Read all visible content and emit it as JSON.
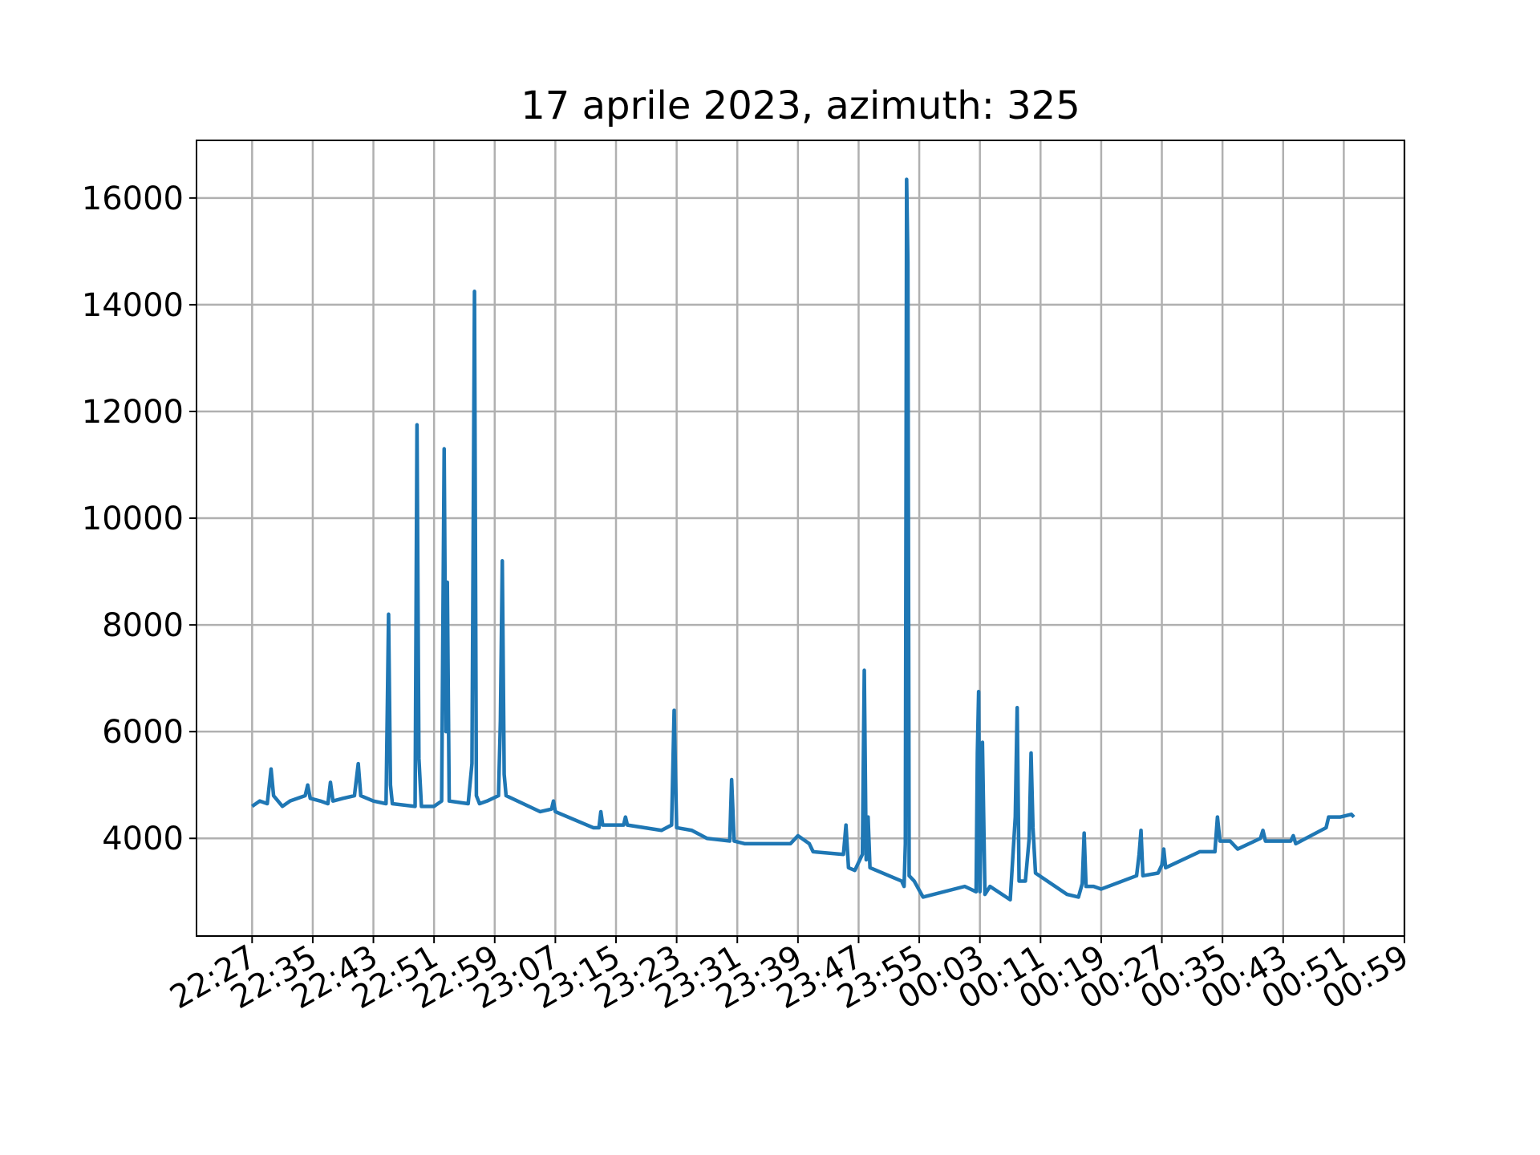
{
  "chart_data": {
    "type": "line",
    "title": "17 aprile 2023, azimuth: 325",
    "x": [
      "22:27:00",
      "22:28:00",
      "22:29:00",
      "22:29:30",
      "22:29:50",
      "22:31:00",
      "22:32:00",
      "22:34:00",
      "22:34:20",
      "22:34:40",
      "22:36:00",
      "22:37:00",
      "22:37:20",
      "22:37:40",
      "22:39:00",
      "22:40:30",
      "22:41:00",
      "22:41:20",
      "22:43:00",
      "22:44:40",
      "22:45:00",
      "22:45:15",
      "22:45:30",
      "22:48:30",
      "22:48:45",
      "22:49:00",
      "22:49:20",
      "22:51:00",
      "22:52:00",
      "22:52:20",
      "22:52:35",
      "22:52:45",
      "22:53:00",
      "22:55:30",
      "22:56:00",
      "22:56:20",
      "22:56:35",
      "22:57:00",
      "22:58:00",
      "22:59:30",
      "22:59:45",
      "23:00:00",
      "23:00:15",
      "23:00:30",
      "23:05:00",
      "23:06:30",
      "23:06:45",
      "23:07:00",
      "23:12:00",
      "23:12:45",
      "23:13:00",
      "23:13:15",
      "23:16:00",
      "23:16:15",
      "23:16:30",
      "23:21:00",
      "23:22:20",
      "23:22:40",
      "23:23:00",
      "23:25:00",
      "23:27:00",
      "23:30:00",
      "23:30:15",
      "23:30:35",
      "23:32:00",
      "23:38:00",
      "23:39:00",
      "23:40:30",
      "23:41:00",
      "23:45:00",
      "23:45:20",
      "23:45:40",
      "23:46:30",
      "23:47:30",
      "23:47:45",
      "23:48:00",
      "23:48:15",
      "23:48:30",
      "23:52:40",
      "23:53:00",
      "23:53:10",
      "23:53:20",
      "23:53:30",
      "23:53:40",
      "23:54:20",
      "23:55:30",
      "00:01:00",
      "00:02:30",
      "00:02:40",
      "00:02:50",
      "00:03:00",
      "00:03:20",
      "00:03:40",
      "00:04:20",
      "00:07:00",
      "00:07:40",
      "00:07:55",
      "00:08:10",
      "00:09:00",
      "00:09:30",
      "00:09:45",
      "00:10:00",
      "00:10:20",
      "00:14:30",
      "00:16:00",
      "00:16:30",
      "00:16:45",
      "00:17:00",
      "00:18:00",
      "00:19:00",
      "00:23:40",
      "00:24:00",
      "00:24:15",
      "00:24:30",
      "00:26:30",
      "00:27:00",
      "00:27:15",
      "00:27:30",
      "00:32:00",
      "00:34:00",
      "00:34:20",
      "00:34:40",
      "00:36:00",
      "00:37:00",
      "00:40:00",
      "00:40:20",
      "00:40:40",
      "00:44:00",
      "00:44:20",
      "00:44:40",
      "00:48:40",
      "00:49:00",
      "00:50:30",
      "00:52:00",
      "00:52:20"
    ],
    "series": [
      {
        "color": "#1f77b4",
        "values": [
          4600,
          4700,
          4650,
          5300,
          4800,
          4600,
          4700,
          4800,
          5000,
          4750,
          4700,
          4650,
          5050,
          4700,
          4750,
          4800,
          5400,
          4800,
          4700,
          4650,
          8200,
          5000,
          4650,
          4600,
          11750,
          5500,
          4600,
          4600,
          4700,
          11300,
          6000,
          8800,
          4700,
          4650,
          5400,
          14250,
          4800,
          4650,
          4700,
          4800,
          6200,
          9200,
          5200,
          4800,
          4500,
          4550,
          4700,
          4500,
          4200,
          4200,
          4500,
          4250,
          4250,
          4400,
          4250,
          4150,
          4250,
          6400,
          4200,
          4150,
          4000,
          3950,
          5100,
          3950,
          3900,
          3900,
          4050,
          3900,
          3750,
          3700,
          4250,
          3450,
          3400,
          3700,
          7150,
          3600,
          4400,
          3450,
          3200,
          3100,
          3900,
          16350,
          14800,
          3300,
          3200,
          2900,
          3100,
          3000,
          5600,
          6750,
          3000,
          5800,
          2950,
          3100,
          2850,
          4400,
          6450,
          3200,
          3200,
          4000,
          5600,
          4200,
          3350,
          2950,
          2900,
          3150,
          4100,
          3100,
          3100,
          3050,
          3300,
          3700,
          4150,
          3300,
          3350,
          3500,
          3800,
          3450,
          3750,
          3750,
          4400,
          3950,
          3950,
          3800,
          4000,
          4150,
          3950,
          3950,
          4050,
          3900,
          4200,
          4400,
          4400,
          4450,
          4400
        ]
      }
    ],
    "xlim": [
      "22:19:40",
      "00:59:00"
    ],
    "xticks": [
      "22:27",
      "22:35",
      "22:43",
      "22:51",
      "22:59",
      "23:07",
      "23:15",
      "23:23",
      "23:31",
      "23:39",
      "23:47",
      "23:55",
      "00:03",
      "00:11",
      "00:19",
      "00:27",
      "00:35",
      "00:43",
      "00:51",
      "00:59"
    ],
    "ylim": [
      2170,
      17080
    ],
    "yticks": [
      4000,
      6000,
      8000,
      10000,
      12000,
      14000,
      16000
    ],
    "grid": true
  }
}
